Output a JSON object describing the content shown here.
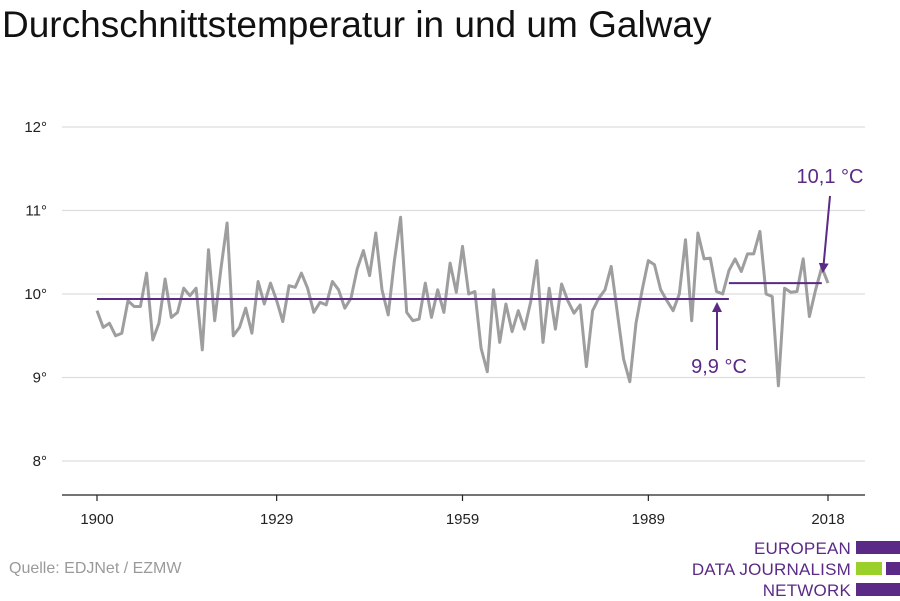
{
  "title": "Durchschnittstemperatur in und um Galway",
  "source": "Quelle: EDJNet / EZMW",
  "logo": {
    "lines": [
      "EUROPEAN",
      "DATA JOURNALISM",
      "NETWORK"
    ],
    "colors": [
      "#5b2a86",
      "#9bd02a",
      "#5b2a86"
    ]
  },
  "colors": {
    "series": "#9e9e9e",
    "average": "#5b2a86",
    "grid": "#dddddd",
    "axis": "#222222"
  },
  "chart_data": {
    "type": "line",
    "title": "Durchschnittstemperatur in und um Galway",
    "xlabel": "",
    "ylabel": "",
    "xlim": [
      1900,
      2018
    ],
    "ylim": [
      7.6,
      12.3
    ],
    "x_ticks": [
      1900,
      1929,
      1959,
      1989,
      2018
    ],
    "x_tick_labels": [
      "1900",
      "1929",
      "1959",
      "1989",
      "2018"
    ],
    "y_ticks": [
      8,
      9,
      10,
      11,
      12
    ],
    "y_tick_labels": [
      "8°",
      "9°",
      "10°",
      "11°",
      "12°"
    ],
    "grid": "horizontal",
    "series": [
      {
        "x_start": 1900,
        "x_end": 2018,
        "values": [
          9.8,
          9.6,
          9.65,
          9.5,
          9.53,
          9.92,
          9.85,
          9.85,
          10.25,
          9.45,
          9.65,
          10.18,
          9.72,
          9.78,
          10.07,
          9.98,
          10.07,
          9.33,
          10.53,
          9.68,
          10.3,
          10.85,
          9.5,
          9.6,
          9.83,
          9.53,
          10.15,
          9.88,
          10.13,
          9.92,
          9.67,
          10.1,
          10.08,
          10.25,
          10.07,
          9.78,
          9.9,
          9.87,
          10.15,
          10.05,
          9.83,
          9.95,
          10.3,
          10.52,
          10.22,
          10.73,
          10.05,
          9.75,
          10.4,
          10.92,
          9.78,
          9.68,
          9.7,
          10.13,
          9.72,
          10.05,
          9.78,
          10.37,
          10.02,
          10.57,
          10.0,
          10.03,
          9.35,
          9.07,
          10.05,
          9.42,
          9.88,
          9.55,
          9.8,
          9.58,
          9.9,
          10.4,
          9.42,
          10.07,
          9.58,
          10.12,
          9.92,
          9.77,
          9.87,
          9.13,
          9.8,
          9.95,
          10.05,
          10.33,
          9.77,
          9.22,
          8.95,
          9.65,
          10.05,
          10.4,
          10.35,
          10.05,
          9.92,
          9.8,
          10.0,
          10.65,
          9.68,
          10.73,
          10.42,
          10.43,
          10.03,
          10.0,
          10.28,
          10.42,
          10.27,
          10.48,
          10.48,
          10.75,
          10.0,
          9.97,
          8.9,
          10.07,
          10.02,
          10.03,
          10.42,
          9.73,
          10.05,
          10.32,
          10.13
        ]
      }
    ],
    "average_lines": [
      {
        "label": "9,9 °C",
        "value": 9.94,
        "x_start": 1900,
        "x_end": 2002
      },
      {
        "label": "10,1 °C",
        "value": 10.13,
        "x_start": 2002,
        "x_end": 2017
      }
    ]
  }
}
